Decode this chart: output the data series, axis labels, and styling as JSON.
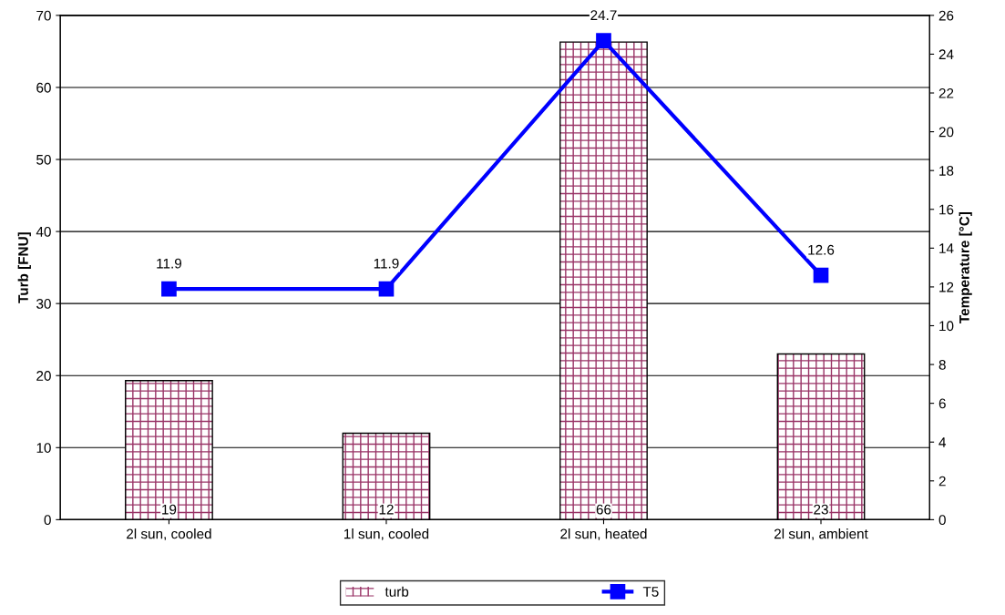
{
  "chart_data": {
    "type": "bar",
    "categories": [
      "2l sun, cooled",
      "1l sun, cooled",
      "2l sun, heated",
      "2l sun, ambient"
    ],
    "ylabel": "Turb [FNU]",
    "y2label": "Temperature [°C]",
    "ylim": [
      0,
      70
    ],
    "yticks": [
      0,
      10,
      20,
      30,
      40,
      50,
      60,
      70
    ],
    "y2lim": [
      0,
      26
    ],
    "y2ticks": [
      0,
      2,
      4,
      6,
      8,
      10,
      12,
      14,
      16,
      18,
      20,
      22,
      24,
      26
    ],
    "grid": "y",
    "legend": "bottom",
    "series": [
      {
        "name": "turb",
        "color": "#993366",
        "values": [
          19.3,
          12,
          66.3,
          23
        ],
        "value_labels": [
          "19",
          "12",
          "66",
          "23"
        ]
      },
      {
        "name": "T5",
        "type": "line",
        "axis": "y2",
        "color": "#0000ff",
        "marker": "square",
        "line_style": "solid",
        "values": [
          11.9,
          11.9,
          24.7,
          12.6
        ],
        "data_labels": true
      }
    ]
  }
}
